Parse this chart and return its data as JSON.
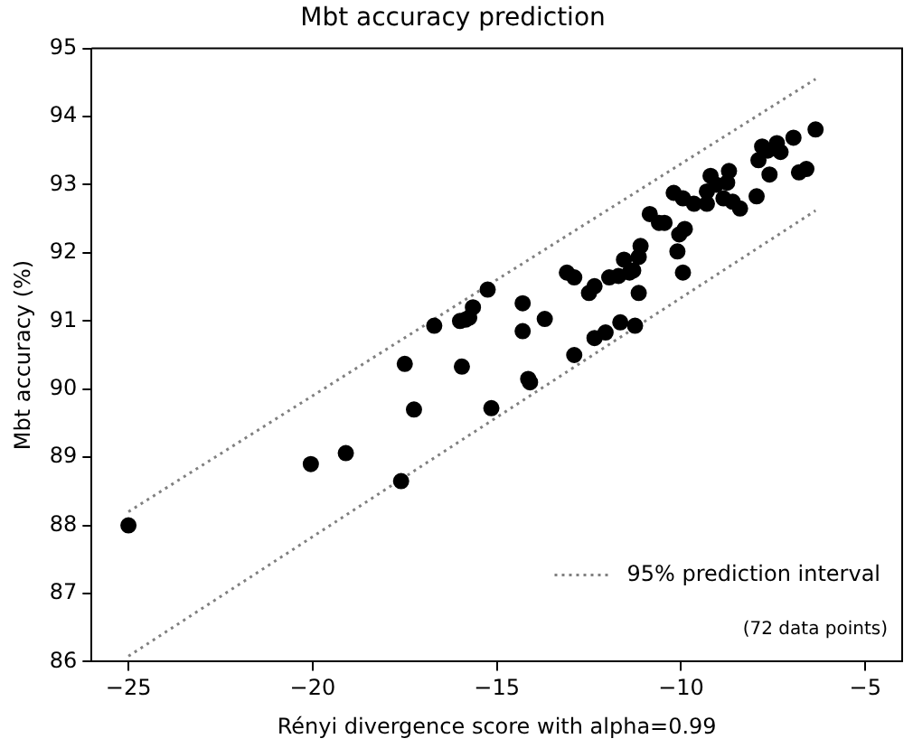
{
  "chart_data": {
    "type": "scatter",
    "title": "Mbt accuracy prediction",
    "xlabel": "Rényi divergence score with alpha=0.99",
    "ylabel": "Mbt accuracy (%)",
    "xlim": [
      -26,
      -4
    ],
    "xticks": [
      -25,
      -20,
      -15,
      -10,
      -5
    ],
    "ylim": [
      86,
      95
    ],
    "yticks": [
      86,
      87,
      88,
      89,
      90,
      91,
      92,
      93,
      94,
      95
    ],
    "grid": false,
    "legend": "bottom right",
    "marker": "circle",
    "annotations": [
      "(72 data points)"
    ],
    "series": [
      {
        "type": "scatter",
        "color": "#000000",
        "x": [
          -25,
          -20.05,
          -19.1,
          -17.6,
          -17.5,
          -17.25,
          -15.95,
          -16.7,
          -16.0,
          -15.85,
          -15.75,
          -15.65,
          -15.25,
          -15.15,
          -14.3,
          -14.3,
          -14.15,
          -14.1,
          -13.7,
          -13.1,
          -12.9,
          -12.5,
          -12.35,
          -12.9,
          -12.35,
          -12.05,
          -11.65,
          -11.25,
          -11.95,
          -11.7,
          -11.55,
          -11.4,
          -11.3,
          -11.15,
          -11.1,
          -11.15,
          -10.85,
          -10.6,
          -10.45,
          -10.05,
          -9.9,
          -10.1,
          -9.95,
          -10.2,
          -9.95,
          -9.65,
          -9.3,
          -9.3,
          -9.2,
          -9.05,
          -8.75,
          -8.7,
          -8.85,
          -8.6,
          -8.4,
          -7.95,
          -7.9,
          -7.8,
          -7.6,
          -7.65,
          -7.4,
          -7.3,
          -6.95,
          -6.8,
          -6.6,
          -6.35
        ],
        "values": [
          88.0,
          88.9,
          89.06,
          88.65,
          90.37,
          89.7,
          90.33,
          90.93,
          91.0,
          91.02,
          91.05,
          91.2,
          91.46,
          89.72,
          91.26,
          90.85,
          90.15,
          90.1,
          91.03,
          91.71,
          91.64,
          91.41,
          91.51,
          90.5,
          90.75,
          90.83,
          90.98,
          90.93,
          91.64,
          91.66,
          91.9,
          91.71,
          91.74,
          91.94,
          92.1,
          91.41,
          92.57,
          92.44,
          92.44,
          92.27,
          92.35,
          92.02,
          91.71,
          92.88,
          92.8,
          92.72,
          92.9,
          92.72,
          93.13,
          93.0,
          93.03,
          93.2,
          92.8,
          92.75,
          92.65,
          92.83,
          93.36,
          93.56,
          93.15,
          93.5,
          93.61,
          93.48,
          93.69,
          93.18,
          93.23,
          93.81
        ]
      },
      {
        "type": "line",
        "name": "95% prediction interval",
        "color": "#808080",
        "line_style": "dotted",
        "marker": "none",
        "x": [
          -25,
          -6.35
        ],
        "values": [
          88.2,
          94.55
        ]
      },
      {
        "type": "line",
        "color": "#808080",
        "line_style": "dotted",
        "marker": "none",
        "x": [
          -25,
          -6.35
        ],
        "values": [
          86.08,
          92.62
        ]
      }
    ]
  }
}
